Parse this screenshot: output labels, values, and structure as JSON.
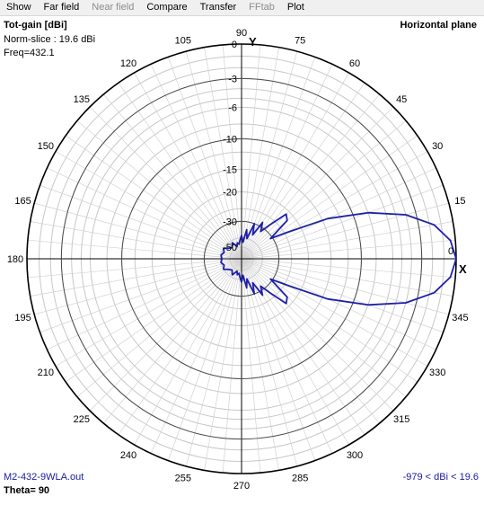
{
  "menu": {
    "items": [
      {
        "label": "Show",
        "enabled": true
      },
      {
        "label": "Far field",
        "enabled": true
      },
      {
        "label": "Near field",
        "enabled": false
      },
      {
        "label": "Compare",
        "enabled": true
      },
      {
        "label": "Transfer",
        "enabled": true
      },
      {
        "label": "FFtab",
        "enabled": false
      },
      {
        "label": "Plot",
        "enabled": true
      }
    ]
  },
  "plot": {
    "title": "Tot-gain [dBi]",
    "norm_slice": "Norm-slice : 19.6 dBi",
    "freq": "Freq=432.1",
    "plane": "Horizontal plane",
    "filename": "M2-432-9WLA.out",
    "range_text": "-979 < dBi < 19.6",
    "theta": "Theta= 90",
    "y_axis_label": "Y",
    "x_axis_label": "X",
    "trace_color": "#1f1fa8",
    "angle_labels": [
      "0",
      "15",
      "30",
      "45",
      "60",
      "75",
      "90",
      "105",
      "120",
      "135",
      "150",
      "165",
      "180",
      "195",
      "210",
      "225",
      "240",
      "255",
      "270",
      "285",
      "300",
      "315",
      "330",
      "345"
    ],
    "ring_labels": [
      "0",
      "-3",
      "-6",
      "-10",
      "-15",
      "-20",
      "-30",
      "-50"
    ]
  },
  "chart_data": {
    "type": "polar",
    "unit": "dBi (normalized)",
    "norm_gain_dbi": 19.6,
    "angles_deg": [
      0,
      5,
      10,
      15,
      20,
      25,
      30,
      35,
      40,
      45,
      50,
      55,
      60,
      65,
      70,
      75,
      80,
      85,
      90,
      95,
      100,
      105,
      110,
      120,
      130,
      140,
      150,
      160,
      170,
      180,
      190,
      200,
      210,
      220,
      230,
      240,
      250,
      255,
      260,
      265,
      270,
      275,
      280,
      285,
      290,
      295,
      300,
      305,
      310,
      315,
      320,
      325,
      330,
      335,
      340,
      345,
      350,
      355
    ],
    "rel_db": [
      0,
      -0.4,
      -1.6,
      -4.0,
      -8.0,
      -14.0,
      -24.0,
      -31.0,
      -22.0,
      -21.0,
      -27.0,
      -32.0,
      -28.0,
      -36.0,
      -30.0,
      -40.0,
      -34.0,
      -44.0,
      -38.0,
      -42.0,
      -46.0,
      -44.0,
      -48.0,
      -42.0,
      -46.0,
      -44.0,
      -40.0,
      -42.0,
      -40.0,
      -41.0,
      -40.0,
      -42.0,
      -40.0,
      -44.0,
      -46.0,
      -42.0,
      -48.0,
      -44.0,
      -46.0,
      -42.0,
      -38.0,
      -44.0,
      -34.0,
      -40.0,
      -30.0,
      -36.0,
      -28.0,
      -32.0,
      -27.0,
      -21.0,
      -22.0,
      -31.0,
      -24.0,
      -14.0,
      -8.0,
      -4.0,
      -1.6,
      -0.4
    ]
  }
}
